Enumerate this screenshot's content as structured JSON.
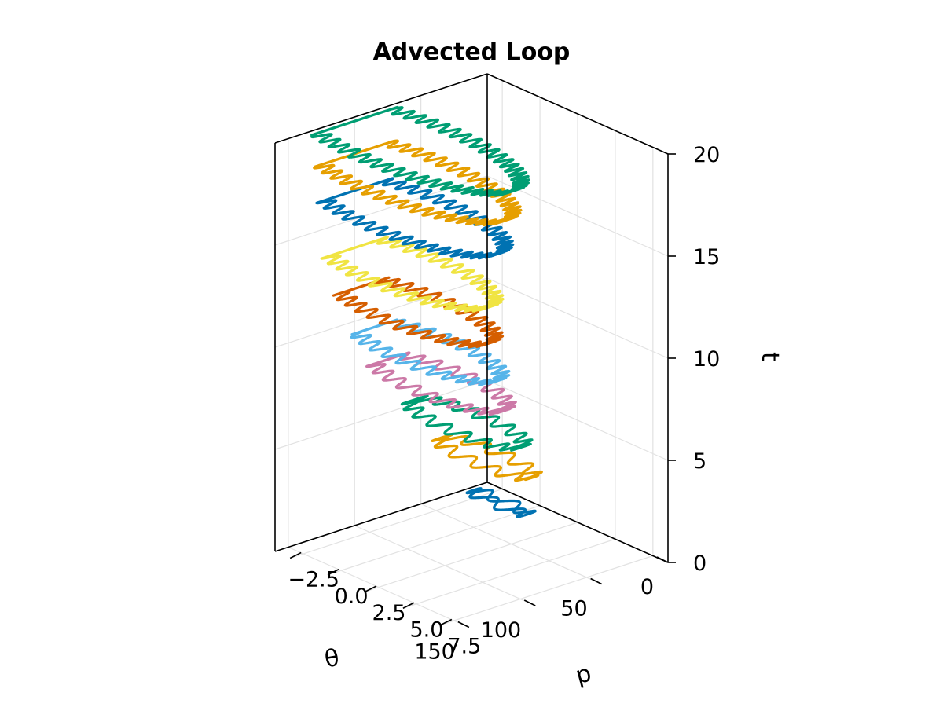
{
  "chart_data": {
    "type": "line",
    "title": "Advected Loop",
    "xlabel": "θ",
    "ylabel": "p",
    "zlabel": "t",
    "xlim": [
      0,
      160
    ],
    "ylim": [
      -3.5,
      8.5
    ],
    "zlim": [
      0,
      20
    ],
    "x_ticks": [
      {
        "value": 0,
        "label": "0"
      },
      {
        "value": 50,
        "label": "50"
      },
      {
        "value": 100,
        "label": "100"
      },
      {
        "value": 150,
        "label": "150"
      }
    ],
    "y_ticks": [
      {
        "value": -2.5,
        "label": "−2.5"
      },
      {
        "value": 0.0,
        "label": "0.0"
      },
      {
        "value": 2.5,
        "label": "2.5"
      },
      {
        "value": 5.0,
        "label": "5.0"
      },
      {
        "value": 7.5,
        "label": "7.5"
      }
    ],
    "z_ticks": [
      {
        "value": 0,
        "label": "0"
      },
      {
        "value": 5,
        "label": "5"
      },
      {
        "value": 10,
        "label": "10"
      },
      {
        "value": 15,
        "label": "15"
      },
      {
        "value": 20,
        "label": "20"
      }
    ],
    "grid": true,
    "colors": [
      "#0072b2",
      "#e69f00",
      "#009e73",
      "#cc79a7",
      "#56b4e9",
      "#d55e00",
      "#f0e442",
      "#0072b2",
      "#e69f00",
      "#009e73"
    ],
    "series": [
      {
        "t": 0.8,
        "theta_center": 30,
        "theta_amp": 3,
        "p_center": 0.0,
        "p_amp": 1.8,
        "windings": 1
      },
      {
        "t": 3.2,
        "theta_center": 40,
        "theta_amp": 10,
        "p_center": 0.0,
        "p_amp": 3.0,
        "windings": 2
      },
      {
        "t": 5.2,
        "theta_center": 55,
        "theta_amp": 14,
        "p_center": 0.0,
        "p_amp": 3.6,
        "windings": 3
      },
      {
        "t": 7.6,
        "theta_center": 75,
        "theta_amp": 18,
        "p_center": 0.0,
        "p_amp": 4.2,
        "windings": 4
      },
      {
        "t": 9.4,
        "theta_center": 85,
        "theta_amp": 20,
        "p_center": 0.0,
        "p_amp": 4.6,
        "windings": 5
      },
      {
        "t": 11.6,
        "theta_center": 95,
        "theta_amp": 22,
        "p_center": 0.0,
        "p_amp": 5.0,
        "windings": 6
      },
      {
        "t": 13.6,
        "theta_center": 100,
        "theta_amp": 25,
        "p_center": 0.0,
        "p_amp": 5.4,
        "windings": 7
      },
      {
        "t": 16.4,
        "theta_center": 100,
        "theta_amp": 28,
        "p_center": 0.0,
        "p_amp": 6.0,
        "windings": 8
      },
      {
        "t": 18.2,
        "theta_center": 100,
        "theta_amp": 30,
        "p_center": 0.0,
        "p_amp": 6.5,
        "windings": 9
      },
      {
        "t": 19.8,
        "theta_center": 100,
        "theta_amp": 32,
        "p_center": 0.0,
        "p_amp": 7.0,
        "windings": 10
      }
    ]
  }
}
